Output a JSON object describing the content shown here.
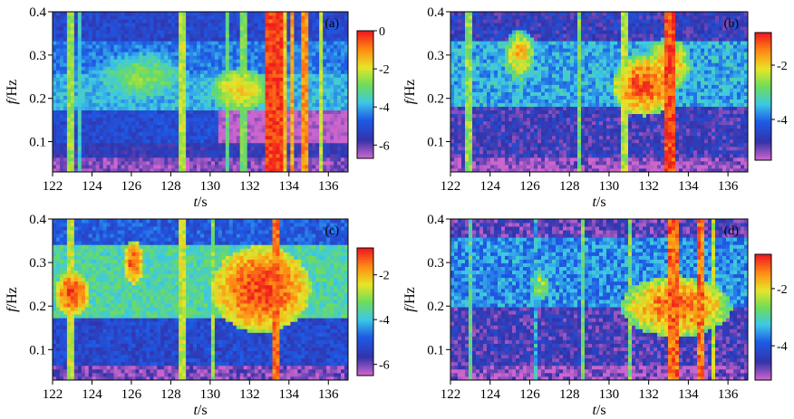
{
  "chart_data": [
    {
      "type": "heatmap",
      "panel_label": "(a)",
      "xlabel_italic": "t",
      "xlabel_unit": "/s",
      "ylabel_italic": "f",
      "ylabel_unit": "/Hz",
      "xlim": [
        122,
        137
      ],
      "ylim": [
        0.03,
        0.4
      ],
      "xticks": [
        122,
        124,
        126,
        128,
        130,
        132,
        134,
        136
      ],
      "yticks": [
        0.1,
        0.2,
        0.3,
        0.4
      ],
      "colorbar": {
        "range": [
          -6.7,
          0
        ],
        "ticks": [
          0,
          -2,
          -4,
          -6
        ],
        "tick_labels": [
          "0",
          "-2",
          "-4",
          "-6"
        ]
      },
      "bands": [
        {
          "t0": 122,
          "t1": 137,
          "f0": 0.03,
          "f1": 0.065,
          "v": -6.3
        },
        {
          "t0": 122,
          "t1": 137,
          "f0": 0.065,
          "f1": 0.1,
          "v": -5.6
        },
        {
          "t0": 122,
          "t1": 130.5,
          "f0": 0.1,
          "f1": 0.17,
          "v": -5.1
        },
        {
          "t0": 122,
          "t1": 137,
          "f0": 0.17,
          "f1": 0.26,
          "v": -3.9
        },
        {
          "t0": 122,
          "t1": 137,
          "f0": 0.26,
          "f1": 0.33,
          "v": -4.4
        },
        {
          "t0": 122,
          "t1": 137,
          "f0": 0.33,
          "f1": 0.4,
          "v": -5.2
        }
      ],
      "blobs": [
        {
          "t": 126.5,
          "f": 0.25,
          "rt": 2.5,
          "rf": 0.06,
          "v": -3.5
        },
        {
          "t": 131.5,
          "f": 0.22,
          "rt": 1.5,
          "rf": 0.05,
          "v": -2.5
        }
      ],
      "lines": [
        {
          "t": 122.9,
          "v": -2.5,
          "w": 0.15
        },
        {
          "t": 123.4,
          "v": -3.5,
          "w": 0.1
        },
        {
          "t": 128.6,
          "v": -2.2,
          "w": 0.15
        },
        {
          "t": 130.9,
          "v": -3.0,
          "w": 0.1
        },
        {
          "t": 131.7,
          "v": -2.8,
          "w": 0.1
        },
        {
          "t": 133.2,
          "v": -0.3,
          "w": 0.45
        },
        {
          "t": 133.7,
          "v": -1.5,
          "w": 0.12
        },
        {
          "t": 134.2,
          "v": -1.2,
          "w": 0.12
        },
        {
          "t": 134.8,
          "v": -1.0,
          "w": 0.15
        },
        {
          "t": 135.6,
          "v": -2.2,
          "w": 0.12
        }
      ]
    },
    {
      "type": "heatmap",
      "panel_label": "(b)",
      "xlabel_italic": "t",
      "xlabel_unit": "/s",
      "ylabel_italic": "f",
      "ylabel_unit": "/Hz",
      "xlim": [
        122,
        137
      ],
      "ylim": [
        0.03,
        0.4
      ],
      "xticks": [
        122,
        124,
        126,
        128,
        130,
        132,
        134,
        136
      ],
      "yticks": [
        0.1,
        0.2,
        0.3,
        0.4
      ],
      "colorbar": {
        "range": [
          -5.5,
          -0.8
        ],
        "ticks": [
          -2,
          -4
        ],
        "tick_labels": [
          "-2",
          "-4"
        ]
      },
      "bands": [
        {
          "t0": 122,
          "t1": 137,
          "f0": 0.03,
          "f1": 0.06,
          "v": -5.3
        },
        {
          "t0": 122,
          "t1": 137,
          "f0": 0.06,
          "f1": 0.18,
          "v": -4.8
        },
        {
          "t0": 122,
          "t1": 137,
          "f0": 0.18,
          "f1": 0.33,
          "v": -3.6
        },
        {
          "t0": 122,
          "t1": 137,
          "f0": 0.33,
          "f1": 0.4,
          "v": -4.7
        }
      ],
      "blobs": [
        {
          "t": 125.5,
          "f": 0.3,
          "rt": 0.8,
          "rf": 0.06,
          "v": -2.6
        },
        {
          "t": 131.8,
          "f": 0.23,
          "rt": 1.6,
          "rf": 0.07,
          "v": -1.9
        },
        {
          "t": 133.0,
          "f": 0.28,
          "rt": 1.2,
          "rf": 0.06,
          "v": -2.4
        }
      ],
      "lines": [
        {
          "t": 122.9,
          "v": -2.6,
          "w": 0.12
        },
        {
          "t": 128.5,
          "v": -2.8,
          "w": 0.12
        },
        {
          "t": 130.8,
          "v": -2.4,
          "w": 0.12
        },
        {
          "t": 133.1,
          "v": -1.0,
          "w": 0.3
        }
      ]
    },
    {
      "type": "heatmap",
      "panel_label": "(c)",
      "xlabel_italic": "t",
      "xlabel_unit": "/s",
      "ylabel_italic": "f",
      "ylabel_unit": "/Hz",
      "xlim": [
        122,
        137
      ],
      "ylim": [
        0.03,
        0.4
      ],
      "xticks": [
        122,
        124,
        126,
        128,
        130,
        132,
        134,
        136
      ],
      "yticks": [
        0.1,
        0.2,
        0.3,
        0.4
      ],
      "colorbar": {
        "range": [
          -6.5,
          -0.8
        ],
        "ticks": [
          -2,
          -4,
          -6
        ],
        "tick_labels": [
          "-2",
          "-4",
          "-6"
        ]
      },
      "bands": [
        {
          "t0": 122,
          "t1": 137,
          "f0": 0.03,
          "f1": 0.065,
          "v": -6.1
        },
        {
          "t0": 122,
          "t1": 137,
          "f0": 0.065,
          "f1": 0.17,
          "v": -5.2
        },
        {
          "t0": 122,
          "t1": 137,
          "f0": 0.17,
          "f1": 0.34,
          "v": -3.6
        },
        {
          "t0": 122,
          "t1": 137,
          "f0": 0.34,
          "f1": 0.4,
          "v": -4.9
        }
      ],
      "blobs": [
        {
          "t": 123.0,
          "f": 0.23,
          "rt": 0.9,
          "rf": 0.05,
          "v": -1.9
        },
        {
          "t": 126.1,
          "f": 0.3,
          "rt": 0.5,
          "rf": 0.05,
          "v": -2.0
        },
        {
          "t": 132.6,
          "f": 0.24,
          "rt": 2.5,
          "rf": 0.1,
          "v": -1.9
        }
      ],
      "lines": [
        {
          "t": 122.9,
          "v": -2.6,
          "w": 0.12
        },
        {
          "t": 128.6,
          "v": -2.6,
          "w": 0.12
        },
        {
          "t": 130.1,
          "v": -3.0,
          "w": 0.1
        },
        {
          "t": 133.3,
          "v": -1.4,
          "w": 0.18
        }
      ]
    },
    {
      "type": "heatmap",
      "panel_label": "(d)",
      "xlabel_italic": "t",
      "xlabel_unit": "/s",
      "ylabel_italic": "f",
      "ylabel_unit": "/Hz",
      "xlim": [
        122,
        137
      ],
      "ylim": [
        0.03,
        0.4
      ],
      "xticks": [
        122,
        124,
        126,
        128,
        130,
        132,
        134,
        136
      ],
      "yticks": [
        0.1,
        0.2,
        0.3,
        0.4
      ],
      "colorbar": {
        "range": [
          -5.2,
          -0.8
        ],
        "ticks": [
          -2,
          -4
        ],
        "tick_labels": [
          "-2",
          "-4"
        ]
      },
      "bands": [
        {
          "t0": 122,
          "t1": 137,
          "f0": 0.03,
          "f1": 0.065,
          "v": -5.0
        },
        {
          "t0": 122,
          "t1": 137,
          "f0": 0.065,
          "f1": 0.2,
          "v": -4.6
        },
        {
          "t0": 122,
          "t1": 137,
          "f0": 0.2,
          "f1": 0.36,
          "v": -3.6
        },
        {
          "t0": 122,
          "t1": 137,
          "f0": 0.36,
          "f1": 0.4,
          "v": -4.7
        }
      ],
      "blobs": [
        {
          "t": 133.4,
          "f": 0.2,
          "rt": 2.8,
          "rf": 0.07,
          "v": -2.0
        },
        {
          "t": 126.5,
          "f": 0.25,
          "rt": 0.6,
          "rf": 0.05,
          "v": -3.2
        }
      ],
      "lines": [
        {
          "t": 123.0,
          "v": -2.9,
          "w": 0.1
        },
        {
          "t": 126.3,
          "v": -3.4,
          "w": 0.1
        },
        {
          "t": 128.7,
          "v": -2.8,
          "w": 0.1
        },
        {
          "t": 131.0,
          "v": -2.6,
          "w": 0.1
        },
        {
          "t": 133.3,
          "v": -1.2,
          "w": 0.25
        },
        {
          "t": 134.6,
          "v": -1.3,
          "w": 0.18
        },
        {
          "t": 135.3,
          "v": -2.2,
          "w": 0.1
        }
      ]
    }
  ]
}
